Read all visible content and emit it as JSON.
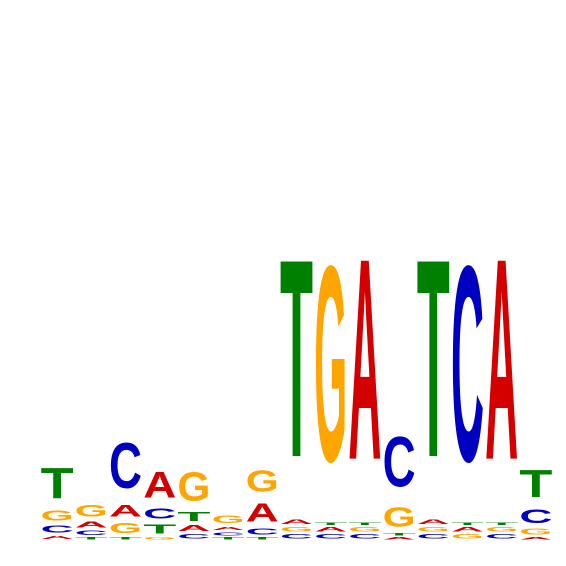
{
  "chart_data": {
    "type": "sequence-logo",
    "alphabet": [
      "A",
      "C",
      "G",
      "T"
    ],
    "colors": {
      "A": "#d40000",
      "C": "#0000c0",
      "G": "#ffa500",
      "T": "#008000"
    },
    "ylim": [
      0,
      2.0
    ],
    "axes_visible": false,
    "positions": [
      {
        "pos": 1,
        "letters": [
          {
            "base": "A",
            "height": 0.03
          },
          {
            "base": "C",
            "height": 0.06
          },
          {
            "base": "G",
            "height": 0.09
          },
          {
            "base": "T",
            "height": 0.27
          }
        ]
      },
      {
        "pos": 2,
        "letters": [
          {
            "base": "T",
            "height": 0.02
          },
          {
            "base": "C",
            "height": 0.04
          },
          {
            "base": "A",
            "height": 0.05
          },
          {
            "base": "G",
            "height": 0.1
          }
        ]
      },
      {
        "pos": 3,
        "letters": [
          {
            "base": "T",
            "height": 0.02
          },
          {
            "base": "G",
            "height": 0.09
          },
          {
            "base": "A",
            "height": 0.1
          },
          {
            "base": "C",
            "height": 0.4
          }
        ]
      },
      {
        "pos": 4,
        "letters": [
          {
            "base": "G",
            "height": 0.02
          },
          {
            "base": "T",
            "height": 0.08
          },
          {
            "base": "C",
            "height": 0.09
          },
          {
            "base": "A",
            "height": 0.23
          }
        ]
      },
      {
        "pos": 5,
        "letters": [
          {
            "base": "C",
            "height": 0.04
          },
          {
            "base": "A",
            "height": 0.05
          },
          {
            "base": "T",
            "height": 0.08
          },
          {
            "base": "G",
            "height": 0.25
          }
        ]
      },
      {
        "pos": 6,
        "letters": [
          {
            "base": "T",
            "height": 0.02
          },
          {
            "base": "C",
            "height": 0.03
          },
          {
            "base": "A",
            "height": 0.03
          },
          {
            "base": "G",
            "height": 0.07
          }
        ]
      },
      {
        "pos": 7,
        "letters": [
          {
            "base": "T",
            "height": 0.02
          },
          {
            "base": "C",
            "height": 0.05
          },
          {
            "base": "A",
            "height": 0.16
          },
          {
            "base": "G",
            "height": 0.19
          }
        ]
      },
      {
        "pos": 8,
        "letters": [
          {
            "base": "C",
            "height": 0.04
          },
          {
            "base": "G",
            "height": 0.04
          },
          {
            "base": "A",
            "height": 0.04
          },
          {
            "base": "T",
            "height": 1.75
          }
        ]
      },
      {
        "pos": 9,
        "letters": [
          {
            "base": "C",
            "height": 0.04
          },
          {
            "base": "A",
            "height": 0.04
          },
          {
            "base": "T",
            "height": 0.02
          },
          {
            "base": "G",
            "height": 1.73
          }
        ]
      },
      {
        "pos": 10,
        "letters": [
          {
            "base": "C",
            "height": 0.04
          },
          {
            "base": "G",
            "height": 0.04
          },
          {
            "base": "T",
            "height": 0.02
          },
          {
            "base": "A",
            "height": 1.78
          }
        ]
      },
      {
        "pos": 11,
        "letters": [
          {
            "base": "A",
            "height": 0.02
          },
          {
            "base": "T",
            "height": 0.02
          },
          {
            "base": "G",
            "height": 0.17
          },
          {
            "base": "C",
            "height": 0.44
          }
        ]
      },
      {
        "pos": 12,
        "letters": [
          {
            "base": "C",
            "height": 0.04
          },
          {
            "base": "G",
            "height": 0.04
          },
          {
            "base": "A",
            "height": 0.04
          },
          {
            "base": "T",
            "height": 1.75
          }
        ]
      },
      {
        "pos": 13,
        "letters": [
          {
            "base": "G",
            "height": 0.04
          },
          {
            "base": "A",
            "height": 0.04
          },
          {
            "base": "T",
            "height": 0.02
          },
          {
            "base": "C",
            "height": 1.73
          }
        ]
      },
      {
        "pos": 14,
        "letters": [
          {
            "base": "C",
            "height": 0.04
          },
          {
            "base": "G",
            "height": 0.04
          },
          {
            "base": "T",
            "height": 0.02
          },
          {
            "base": "A",
            "height": 1.78
          }
        ]
      },
      {
        "pos": 15,
        "letters": [
          {
            "base": "A",
            "height": 0.02
          },
          {
            "base": "G",
            "height": 0.05
          },
          {
            "base": "C",
            "height": 0.12
          },
          {
            "base": "T",
            "height": 0.24
          }
        ]
      }
    ]
  }
}
